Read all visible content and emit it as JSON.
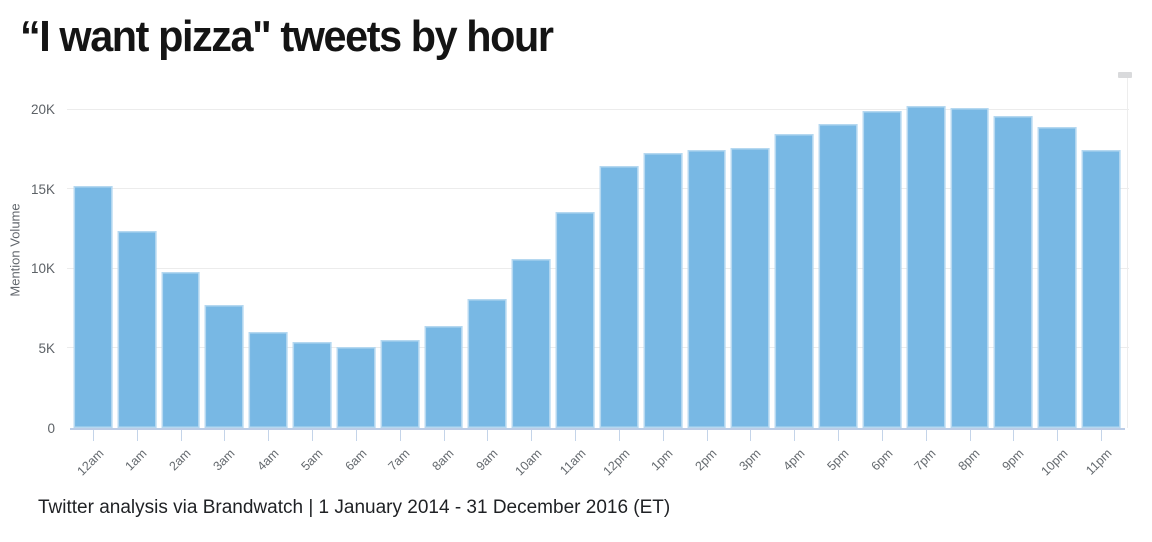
{
  "page": {
    "title": "“I want pizza\" tweets by hour",
    "source_caption": "Twitter analysis via Brandwatch | 1 January 2014 - 31 December 2016 (ET)"
  },
  "chart_data": {
    "type": "bar",
    "title": "“I want pizza\" tweets by hour",
    "xlabel": "",
    "ylabel": "Mention Volume",
    "categories": [
      "12am",
      "1am",
      "2am",
      "3am",
      "4am",
      "5am",
      "6am",
      "7am",
      "8am",
      "9am",
      "10am",
      "11am",
      "12pm",
      "1pm",
      "2pm",
      "3pm",
      "4pm",
      "5pm",
      "6pm",
      "7pm",
      "8pm",
      "9pm",
      "10pm",
      "11pm"
    ],
    "values": [
      15200,
      12400,
      9800,
      7700,
      6000,
      5400,
      5100,
      5500,
      6400,
      8100,
      10600,
      13550,
      16450,
      17300,
      17450,
      17600,
      18500,
      19100,
      19900,
      20250,
      20100,
      19600,
      18900,
      17450
    ],
    "series_name": "Mention Volume",
    "y_ticks": [
      {
        "value": 20000,
        "label": "20K"
      },
      {
        "value": 15000,
        "label": "15K"
      },
      {
        "value": 10000,
        "label": "10K"
      },
      {
        "value": 5000,
        "label": "5K"
      },
      {
        "value": 0,
        "label": "0"
      }
    ],
    "ylim": [
      0,
      22300
    ],
    "grid": true,
    "legend": false,
    "bar_color": "#78b8e4",
    "bar_edge_color": "#b8d9f1",
    "axis_line_color": "#bccde6",
    "gridline_color": "#ececec"
  }
}
